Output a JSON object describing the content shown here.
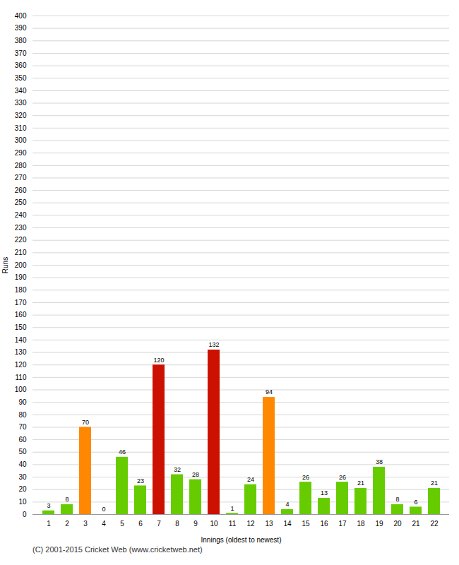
{
  "chart_data": {
    "type": "bar",
    "categories": [
      "1",
      "2",
      "3",
      "4",
      "5",
      "6",
      "7",
      "8",
      "9",
      "10",
      "11",
      "12",
      "13",
      "14",
      "15",
      "16",
      "17",
      "18",
      "19",
      "20",
      "21",
      "22"
    ],
    "values": [
      3,
      8,
      70,
      0,
      46,
      23,
      120,
      32,
      28,
      132,
      1,
      24,
      94,
      4,
      26,
      13,
      26,
      21,
      38,
      8,
      6,
      21
    ],
    "colors": [
      "#66cc00",
      "#66cc00",
      "#ff8800",
      "#66cc00",
      "#66cc00",
      "#66cc00",
      "#cc1100",
      "#66cc00",
      "#66cc00",
      "#cc1100",
      "#66cc00",
      "#66cc00",
      "#ff8800",
      "#66cc00",
      "#66cc00",
      "#66cc00",
      "#66cc00",
      "#66cc00",
      "#66cc00",
      "#66cc00",
      "#66cc00",
      "#66cc00"
    ],
    "xlabel": "Innings (oldest to newest)",
    "ylabel": "Runs",
    "ylim": [
      0,
      400
    ],
    "yticks": [
      0,
      10,
      20,
      30,
      40,
      50,
      60,
      70,
      80,
      90,
      100,
      110,
      120,
      130,
      140,
      150,
      160,
      170,
      180,
      190,
      200,
      210,
      220,
      230,
      240,
      250,
      260,
      270,
      280,
      290,
      300,
      310,
      320,
      330,
      340,
      350,
      360,
      370,
      380,
      390,
      400
    ],
    "grid": true,
    "data_labels": true,
    "annotations": [
      "(C) 2001-2015 Cricket Web (www.cricketweb.net)"
    ]
  }
}
